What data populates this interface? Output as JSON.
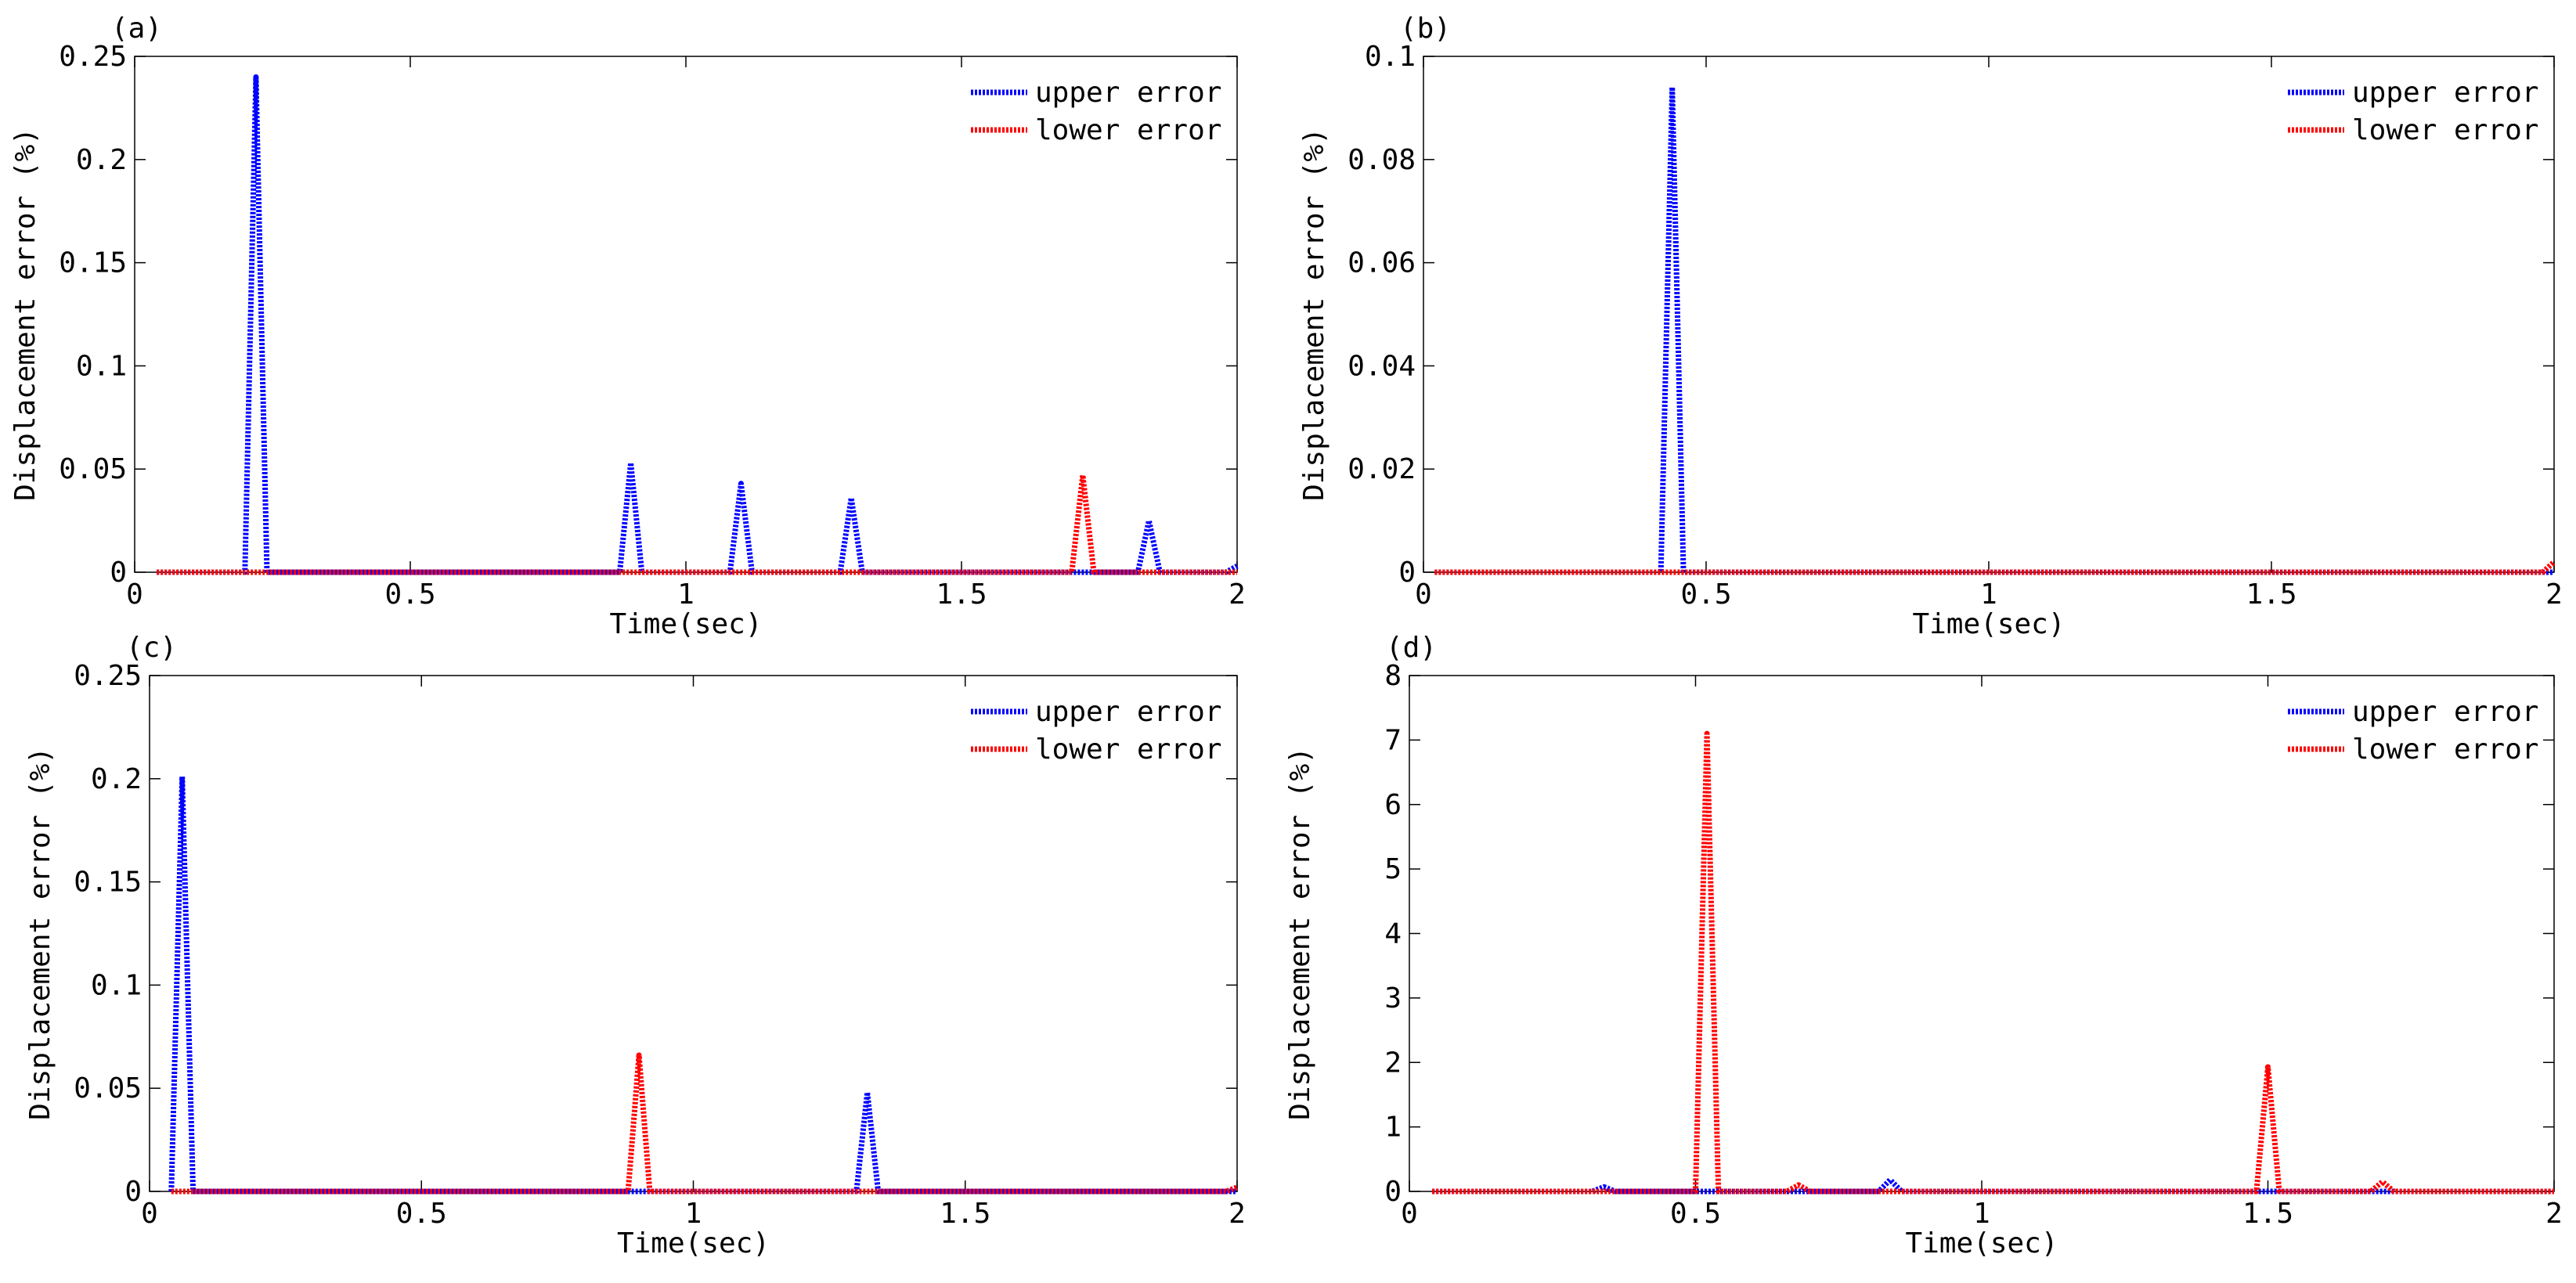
{
  "figure": {
    "colors": {
      "upper": "#0000ff",
      "lower": "#ff0000",
      "axis": "#000000",
      "background": "#ffffff"
    }
  },
  "chart_data": [
    {
      "panel": "(a)",
      "type": "line",
      "xlabel": "Time(sec)",
      "ylabel": "Displacement error (%)",
      "xlim": [
        0,
        2
      ],
      "ylim": [
        0,
        0.25
      ],
      "xticks": [
        0,
        0.5,
        1,
        1.5,
        2
      ],
      "xtick_labels": [
        "0",
        "0.5",
        "1",
        "1.5",
        "2"
      ],
      "yticks": [
        0,
        0.05,
        0.1,
        0.15,
        0.2,
        0.25
      ],
      "ytick_labels": [
        "0",
        "0.05",
        "0.1",
        "0.15",
        "0.2",
        "0.25"
      ],
      "legend": [
        "upper error",
        "lower error"
      ],
      "series": [
        {
          "name": "upper error",
          "color": "#0000ff",
          "x": [
            0.04,
            0.2,
            0.22,
            0.24,
            0.88,
            0.9,
            0.92,
            1.08,
            1.1,
            1.12,
            1.28,
            1.3,
            1.32,
            1.82,
            1.84,
            1.86,
            1.98,
            2.0
          ],
          "y": [
            0,
            0,
            0.24,
            0,
            0,
            0.053,
            0,
            0,
            0.043,
            0,
            0,
            0.036,
            0,
            0,
            0.025,
            0,
            0,
            0.003
          ]
        },
        {
          "name": "lower error",
          "color": "#ff0000",
          "x": [
            0.04,
            1.7,
            1.72,
            1.74,
            2.0
          ],
          "y": [
            0,
            0,
            0.047,
            0,
            0
          ]
        }
      ]
    },
    {
      "panel": "(b)",
      "type": "line",
      "xlabel": "Time(sec)",
      "ylabel": "Displacement error (%)",
      "xlim": [
        0,
        2
      ],
      "ylim": [
        0,
        0.1
      ],
      "xticks": [
        0,
        0.5,
        1,
        1.5,
        2
      ],
      "xtick_labels": [
        "0",
        "0.5",
        "1",
        "1.5",
        "2"
      ],
      "yticks": [
        0,
        0.02,
        0.04,
        0.06,
        0.08,
        0.1
      ],
      "ytick_labels": [
        "0",
        "0.02",
        "0.04",
        "0.06",
        "0.08",
        "0.1"
      ],
      "legend": [
        "upper error",
        "lower error"
      ],
      "series": [
        {
          "name": "upper error",
          "color": "#0000ff",
          "x": [
            0.02,
            0.42,
            0.44,
            0.46,
            2.0
          ],
          "y": [
            0,
            0,
            0.094,
            0,
            0
          ]
        },
        {
          "name": "lower error",
          "color": "#ff0000",
          "x": [
            0.02,
            1.98,
            2.0
          ],
          "y": [
            0,
            0,
            0.002
          ]
        }
      ]
    },
    {
      "panel": "(c)",
      "type": "line",
      "xlabel": "Time(sec)",
      "ylabel": "Displacement error (%)",
      "xlim": [
        0,
        2
      ],
      "ylim": [
        0,
        0.25
      ],
      "xticks": [
        0,
        0.5,
        1,
        1.5,
        2
      ],
      "xtick_labels": [
        "0",
        "0.5",
        "1",
        "1.5",
        "2"
      ],
      "yticks": [
        0,
        0.05,
        0.1,
        0.15,
        0.2,
        0.25
      ],
      "ytick_labels": [
        "0",
        "0.05",
        "0.1",
        "0.15",
        "0.2",
        "0.25"
      ],
      "legend": [
        "upper error",
        "lower error"
      ],
      "series": [
        {
          "name": "upper error",
          "color": "#0000ff",
          "x": [
            0.04,
            0.06,
            0.08,
            1.3,
            1.32,
            1.34,
            2.0
          ],
          "y": [
            0,
            0.201,
            0,
            0,
            0.048,
            0,
            0
          ]
        },
        {
          "name": "lower error",
          "color": "#ff0000",
          "x": [
            0.04,
            0.88,
            0.9,
            0.92,
            1.98,
            2.0
          ],
          "y": [
            0,
            0,
            0.066,
            0,
            0,
            0.002
          ]
        }
      ]
    },
    {
      "panel": "(d)",
      "type": "line",
      "xlabel": "Time(sec)",
      "ylabel": "Displacement error (%)",
      "xlim": [
        0,
        2
      ],
      "ylim": [
        0,
        8
      ],
      "xticks": [
        0,
        0.5,
        1,
        1.5,
        2
      ],
      "xtick_labels": [
        "0",
        "0.5",
        "1",
        "1.5",
        "2"
      ],
      "yticks": [
        0,
        1,
        2,
        3,
        4,
        5,
        6,
        7,
        8
      ],
      "ytick_labels": [
        "0",
        "1",
        "2",
        "3",
        "4",
        "5",
        "6",
        "7",
        "8"
      ],
      "legend": [
        "upper error",
        "lower error"
      ],
      "series": [
        {
          "name": "upper error",
          "color": "#0000ff",
          "x": [
            0.04,
            0.32,
            0.34,
            0.36,
            0.82,
            0.84,
            0.86,
            2.0
          ],
          "y": [
            0,
            0,
            0.07,
            0,
            0,
            0.18,
            0,
            0
          ]
        },
        {
          "name": "lower error",
          "color": "#ff0000",
          "x": [
            0.04,
            0.5,
            0.52,
            0.54,
            0.66,
            0.68,
            0.7,
            1.48,
            1.5,
            1.52,
            1.68,
            1.7,
            1.72,
            2.0
          ],
          "y": [
            0,
            0,
            7.1,
            0,
            0,
            0.1,
            0,
            0,
            1.93,
            0,
            0,
            0.15,
            0,
            0
          ]
        }
      ]
    }
  ]
}
